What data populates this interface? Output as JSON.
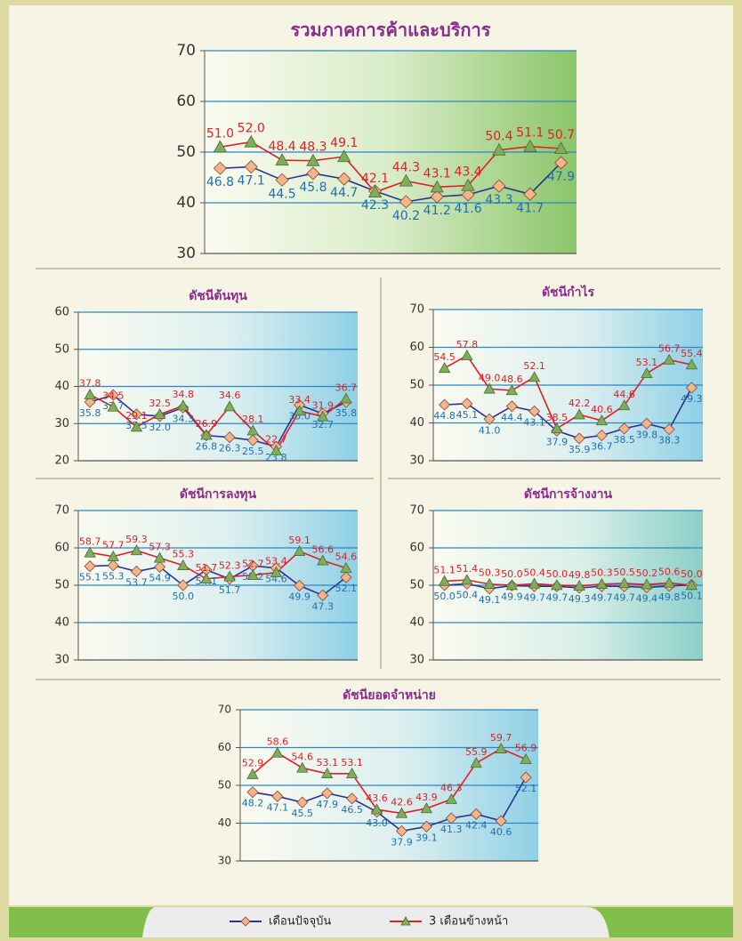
{
  "chart_data": [
    {
      "type": "line",
      "title": "รวมภาคการค้าและบริการ",
      "ylim": [
        30,
        70
      ],
      "yticks": [
        30,
        40,
        50,
        60,
        70
      ],
      "grid": true,
      "series": [
        {
          "color": "#2e3192",
          "values": [
            46.8,
            47.1,
            44.5,
            45.8,
            44.7,
            42.3,
            40.2,
            41.2,
            41.6,
            43.3,
            41.7,
            47.9
          ]
        },
        {
          "color": "#e31e24",
          "values": [
            51.0,
            52.0,
            48.4,
            48.3,
            49.1,
            42.1,
            44.3,
            43.1,
            43.4,
            50.4,
            51.1,
            50.7
          ],
          "value_labels": [
            "51.0",
            "52.0",
            "48.4",
            "48.3",
            "49.1",
            "42.1",
            "44.3",
            "43.1",
            "43.4",
            "50.4",
            "51.1",
            "50.7"
          ]
        }
      ]
    },
    {
      "type": "line",
      "title": "ดัชนีต้นทุน",
      "ylim": [
        20,
        60
      ],
      "yticks": [
        20,
        30,
        40,
        50,
        60
      ],
      "grid": true,
      "series": [
        {
          "color": "#2e3192",
          "values": [
            35.8,
            37.7,
            32.5,
            32.0,
            34.3,
            26.8,
            26.3,
            25.5,
            23.8,
            35.0,
            32.7,
            35.8
          ],
          "value_labels": [
            "35.8",
            "37.7",
            "32.5",
            "32.0",
            "34.3",
            "26.8",
            "26.3",
            "25.5",
            "23.8",
            "35.0",
            "32.7",
            "35.8"
          ]
        },
        {
          "color": "#e31e24",
          "values": [
            37.8,
            34.5,
            29.1,
            32.5,
            34.8,
            26.9,
            34.6,
            28.1,
            22.7,
            33.4,
            31.9,
            36.7
          ]
        }
      ]
    },
    {
      "type": "line",
      "title": "ดัชนีกำไร",
      "ylim": [
        30,
        70
      ],
      "yticks": [
        30,
        40,
        50,
        60,
        70
      ],
      "grid": true,
      "series": [
        {
          "color": "#2e3192",
          "values": [
            44.8,
            45.1,
            41.0,
            44.4,
            43.1,
            37.9,
            35.9,
            36.7,
            38.5,
            39.8,
            38.3,
            49.3
          ],
          "value_labels": [
            "44.8",
            "45.1",
            "41.0",
            "44.4",
            "43.1",
            "37.9",
            "35.9",
            "36.7",
            "38.5",
            "39.8",
            "38.3",
            "49.3"
          ]
        },
        {
          "color": "#e31e24",
          "values": [
            54.5,
            57.8,
            49.0,
            48.6,
            52.1,
            38.5,
            42.2,
            40.6,
            44.6,
            53.1,
            56.7,
            55.4
          ],
          "value_labels": [
            "54.5",
            "57.8",
            "49.0",
            "48.6",
            "52.1",
            "38.5",
            "42.2",
            "40.6",
            "44.6",
            "53.1",
            "56.7",
            "55.4"
          ]
        }
      ]
    },
    {
      "type": "line",
      "title": "ดัชนีการลงทุน",
      "ylim": [
        30,
        70
      ],
      "yticks": [
        30,
        40,
        50,
        60,
        70
      ],
      "grid": true,
      "series": [
        {
          "color": "#2e3192",
          "values": [
            55.1,
            55.3,
            53.7,
            54.9,
            50.0,
            54.1,
            51.7,
            55.2,
            54.6,
            49.9,
            47.3,
            52.1
          ],
          "value_labels": [
            "55.1",
            "55.3",
            "53.7",
            "54.9",
            "50.0",
            "54.1",
            "51.7",
            "55.2",
            "54.6",
            "49.9",
            "47.3",
            "52.1"
          ]
        },
        {
          "color": "#e31e24",
          "values": [
            58.7,
            57.7,
            59.3,
            57.3,
            55.3,
            51.7,
            52.3,
            52.7,
            53.4,
            59.1,
            56.6,
            54.6
          ]
        }
      ]
    },
    {
      "type": "line",
      "title": "ดัชนีการจ้างงาน",
      "ylim": [
        30,
        70
      ],
      "yticks": [
        30,
        40,
        50,
        60,
        70
      ],
      "grid": true,
      "series": [
        {
          "color": "#2e3192",
          "values": [
            50.0,
            50.4,
            49.1,
            49.9,
            49.7,
            49.7,
            49.3,
            49.7,
            49.7,
            49.4,
            49.8,
            50.1
          ],
          "value_labels": [
            "50.0",
            "50.4",
            "49.1",
            "49.9",
            "49.7",
            "49.7",
            "49.3",
            "49.7",
            "49.7",
            "49.4",
            "49.8",
            "50.1"
          ]
        },
        {
          "color": "#e31e24",
          "values": [
            51.1,
            51.4,
            50.3,
            50.0,
            50.4,
            50.0,
            49.8,
            50.3,
            50.5,
            50.2,
            50.6,
            50.0
          ],
          "value_labels": [
            "51.1",
            "51.4",
            "50.3",
            "50.0",
            "50.4",
            "50.0",
            "49.8",
            "50.3",
            "50.5",
            "50.2",
            "50.6",
            "50.0"
          ]
        }
      ]
    },
    {
      "type": "line",
      "title": "ดัชนียอดจำหน่าย",
      "ylim": [
        30,
        70
      ],
      "yticks": [
        30,
        40,
        50,
        60,
        70
      ],
      "grid": true,
      "series": [
        {
          "color": "#2e3192",
          "values": [
            48.2,
            47.1,
            45.5,
            47.9,
            46.5,
            43.0,
            37.9,
            39.1,
            41.3,
            42.4,
            40.6,
            52.1
          ],
          "value_labels": [
            "48.2",
            "47.1",
            "45.5",
            "47.9",
            "46.5",
            "43.0",
            "37.9",
            "39.1",
            "41.3",
            "42.4",
            "40.6",
            "52.1"
          ]
        },
        {
          "color": "#e31e24",
          "values": [
            52.9,
            58.6,
            54.6,
            53.1,
            53.1,
            43.6,
            42.6,
            43.9,
            46.3,
            55.9,
            59.7,
            56.9
          ]
        }
      ]
    }
  ],
  "legend": {
    "items": [
      {
        "name": "เดือนปัจจุบัน",
        "color": "#2e3192"
      },
      {
        "name": "3 เดือนข้างหน้า",
        "color": "#e31e24"
      }
    ]
  }
}
